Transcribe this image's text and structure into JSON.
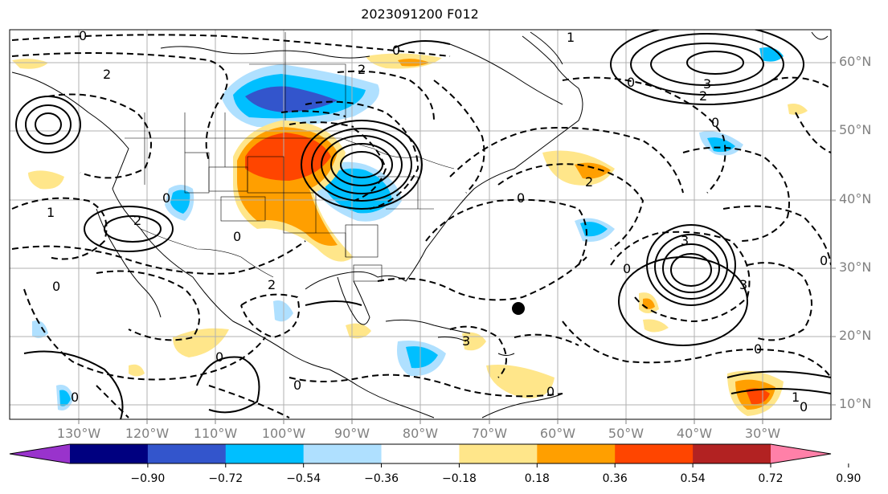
{
  "title": "2023091200 F012",
  "lat_labels": [
    "60°N",
    "50°N",
    "40°N",
    "30°N",
    "20°N",
    "10°N"
  ],
  "lon_labels": [
    "130°W",
    "120°W",
    "110°W",
    "100°W",
    "90°W",
    "80°W",
    "70°W",
    "60°W",
    "50°W",
    "40°W",
    "30°W"
  ],
  "colorbar": {
    "ticks": [
      "−0.90",
      "−0.72",
      "−0.54",
      "−0.36",
      "−0.18",
      "0.18",
      "0.36",
      "0.54",
      "0.72",
      "0.90"
    ],
    "colors": [
      "#9933cc",
      "#000080",
      "#3355cc",
      "#00bfff",
      "#afe0ff",
      "#ffffff",
      "#ffe68a",
      "#ff9f00",
      "#ff4500",
      "#b22222",
      "#ff80a8"
    ]
  },
  "contour_labels": [
    "0",
    "1",
    "2",
    "3"
  ]
}
